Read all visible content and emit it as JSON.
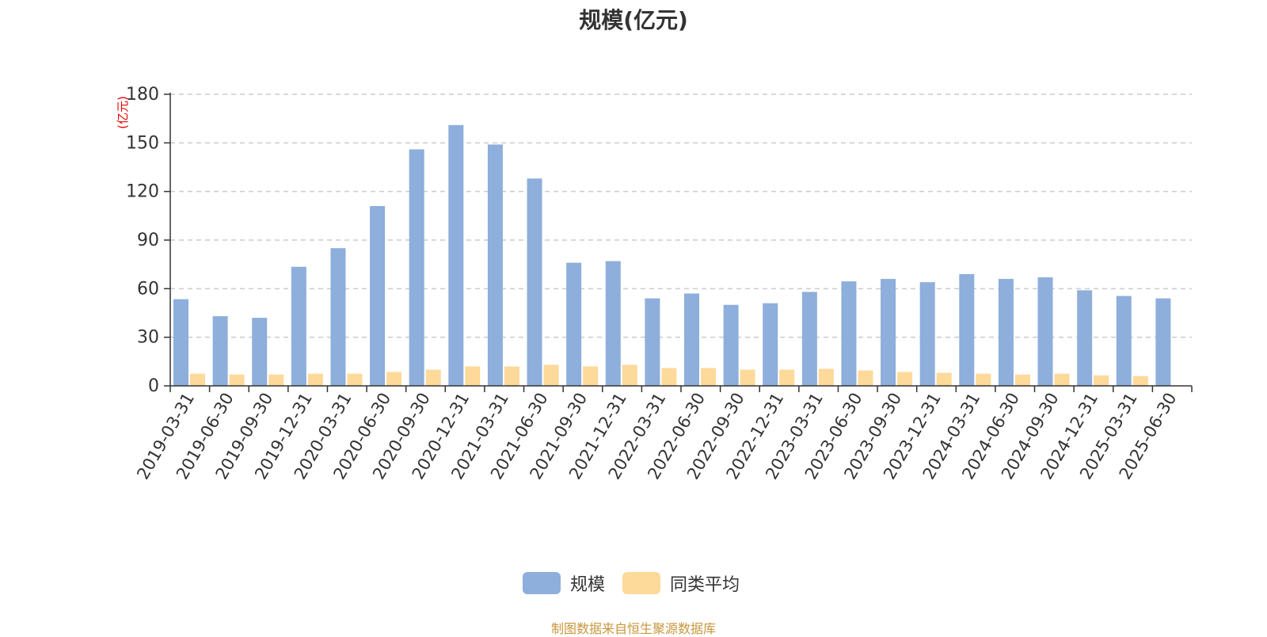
{
  "chart_data": {
    "type": "bar",
    "title": "规模(亿元)",
    "ylabel": "(亿元)",
    "ylim": [
      0,
      180
    ],
    "yticks": [
      0,
      30,
      60,
      90,
      120,
      150,
      180
    ],
    "grid": true,
    "legend_position": "bottom",
    "categories": [
      "2019-03-31",
      "2019-06-30",
      "2019-09-30",
      "2019-12-31",
      "2020-03-31",
      "2020-06-30",
      "2020-09-30",
      "2020-12-31",
      "2021-03-31",
      "2021-06-30",
      "2021-09-30",
      "2021-12-31",
      "2022-03-31",
      "2022-06-30",
      "2022-09-30",
      "2022-12-31",
      "2023-03-31",
      "2023-06-30",
      "2023-09-30",
      "2023-12-31",
      "2024-03-31",
      "2024-06-30",
      "2024-09-30",
      "2024-12-31",
      "2025-03-31",
      "2025-06-30"
    ],
    "series": [
      {
        "name": "规模",
        "color": "#8eaedb",
        "values": [
          53.5,
          43,
          42,
          73.5,
          85,
          111,
          146,
          161,
          149,
          128,
          76,
          77,
          54,
          57,
          50,
          51,
          58,
          64.5,
          66,
          64,
          69,
          66,
          67,
          59,
          55.5,
          54
        ]
      },
      {
        "name": "同类平均",
        "color": "#fdd99a",
        "values": [
          7.5,
          7,
          7,
          7.5,
          7.5,
          8.5,
          10,
          12,
          12,
          13,
          12,
          13,
          11,
          11,
          10,
          10,
          10.5,
          9.5,
          8.5,
          8,
          7.5,
          7,
          7.5,
          6.5,
          6,
          0
        ]
      }
    ]
  },
  "footer": "制图数据来自恒生聚源数据库"
}
